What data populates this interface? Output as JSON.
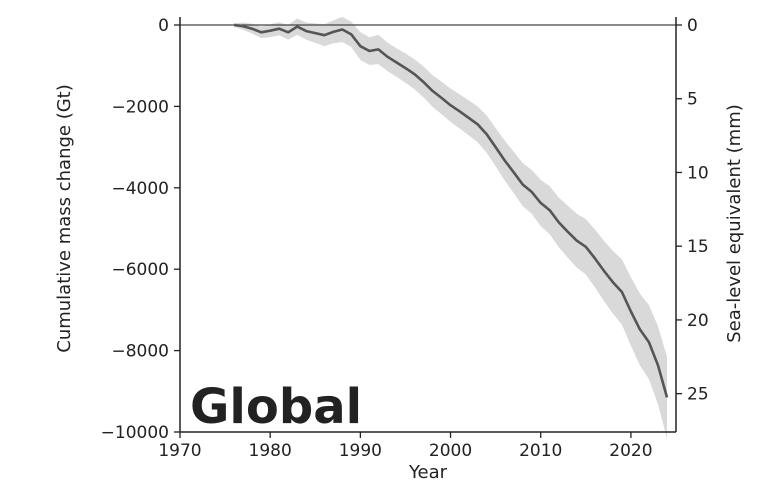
{
  "chart_data": {
    "type": "area",
    "title": "",
    "panel_label": "Global",
    "xlabel": "Year",
    "ylabel": "Cumulative mass change (Gt)",
    "ylabel_right": "Sea-level equivalent (mm)",
    "xlim": [
      1970,
      2025
    ],
    "ylim": [
      -10000,
      0
    ],
    "ylim_right": [
      27.6,
      0
    ],
    "xticks": [
      1970,
      1980,
      1990,
      2000,
      2010,
      2020
    ],
    "xtick_labels": [
      "1970",
      "1980",
      "1990",
      "2000",
      "2010",
      "2020"
    ],
    "yticks": [
      0,
      -2000,
      -4000,
      -6000,
      -8000,
      -10000
    ],
    "ytick_labels": [
      "0",
      "−2000",
      "−4000",
      "−6000",
      "−8000",
      "−10000"
    ],
    "yticks_right": [
      0,
      5,
      10,
      15,
      20,
      25
    ],
    "ytick_labels_right": [
      "0",
      "5",
      "10",
      "15",
      "20",
      "25"
    ],
    "grid": false,
    "reference_line": 0,
    "colors": {
      "line": "#555555",
      "band": "#d9d9d9",
      "axis": "#222222"
    },
    "series": [
      {
        "x": [
          1976,
          1977,
          1978,
          1979,
          1980,
          1981,
          1982,
          1983,
          1984,
          1985,
          1986,
          1987,
          1988,
          1989,
          1990,
          1991,
          1992,
          1993,
          1994,
          1995,
          1996,
          1997,
          1998,
          1999,
          2000,
          2001,
          2002,
          2003,
          2004,
          2005,
          2006,
          2007,
          2008,
          2009,
          2010,
          2011,
          2012,
          2013,
          2014,
          2015,
          2016,
          2017,
          2018,
          2019,
          2020,
          2021,
          2022,
          2023,
          2024
        ],
        "y": [
          0,
          -30,
          -90,
          -180,
          -140,
          -90,
          -180,
          -40,
          -150,
          -200,
          -250,
          -170,
          -110,
          -230,
          -520,
          -640,
          -600,
          -780,
          -920,
          -1060,
          -1210,
          -1400,
          -1620,
          -1790,
          -1970,
          -2120,
          -2280,
          -2440,
          -2680,
          -3000,
          -3330,
          -3620,
          -3920,
          -4100,
          -4370,
          -4550,
          -4850,
          -5080,
          -5300,
          -5450,
          -5730,
          -6040,
          -6320,
          -6560,
          -7040,
          -7480,
          -7790,
          -8360,
          -9150
        ],
        "y_upper": [
          50,
          60,
          30,
          -40,
          20,
          70,
          0,
          160,
          60,
          40,
          20,
          110,
          200,
          80,
          -180,
          -300,
          -240,
          -430,
          -570,
          -700,
          -840,
          -1020,
          -1230,
          -1390,
          -1560,
          -1700,
          -1850,
          -2000,
          -2220,
          -2530,
          -2840,
          -3110,
          -3390,
          -3560,
          -3800,
          -3960,
          -4240,
          -4440,
          -4640,
          -4770,
          -5020,
          -5300,
          -5550,
          -5760,
          -6200,
          -6600,
          -6880,
          -7400,
          -8150
        ],
        "y_lower": [
          -50,
          -120,
          -210,
          -320,
          -300,
          -250,
          -360,
          -240,
          -360,
          -440,
          -520,
          -450,
          -420,
          -540,
          -860,
          -980,
          -960,
          -1130,
          -1270,
          -1420,
          -1580,
          -1780,
          -2010,
          -2190,
          -2380,
          -2540,
          -2710,
          -2880,
          -3140,
          -3470,
          -3820,
          -4130,
          -4450,
          -4640,
          -4940,
          -5140,
          -5460,
          -5720,
          -5960,
          -6130,
          -6440,
          -6780,
          -7090,
          -7360,
          -7880,
          -8360,
          -8700,
          -9320,
          -10160
        ]
      }
    ]
  }
}
